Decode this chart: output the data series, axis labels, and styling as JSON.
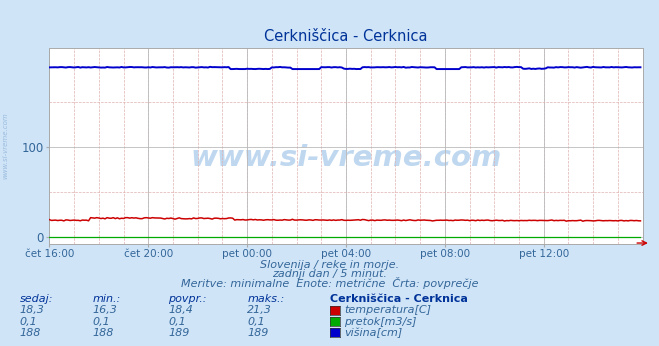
{
  "title": "Cerkniščica - Cerknica",
  "bg_color": "#d0e4f7",
  "plot_bg_color": "#ffffff",
  "x_labels": [
    "čet 16:00",
    "čet 20:00",
    "pet 00:00",
    "pet 04:00",
    "pet 08:00",
    "pet 12:00"
  ],
  "x_ticks_norm": [
    0,
    48,
    96,
    144,
    192,
    240
  ],
  "x_max": 288,
  "y_ticks": [
    0,
    100
  ],
  "y_max": 210,
  "y_min": -8,
  "temp_color": "#cc0000",
  "pretok_color": "#00aa00",
  "visina_color": "#0000cc",
  "subtitle": "Slovenija / reke in morje.\n         zadnji dan / 5 minut.\nMeritve: minimalne  Enote: metrične  Črta: povprečje",
  "table_header_cols": [
    "sedaj:",
    "min.:",
    "povpr.:",
    "maks.:",
    "Cerkniščica - Cerknica"
  ],
  "table_rows": [
    [
      "18,3",
      "16,3",
      "18,4",
      "21,3",
      "temperatura[C]"
    ],
    [
      "0,1",
      "0,1",
      "0,1",
      "0,1",
      "pretok[m3/s]"
    ],
    [
      "188",
      "188",
      "189",
      "189",
      "višina[cm]"
    ]
  ],
  "row_colors": [
    "#cc0000",
    "#00aa00",
    "#0000cc"
  ],
  "watermark": "www.si-vreme.com",
  "side_text": "www.si-vreme.com",
  "n_points": 288,
  "temp_base": 18.4,
  "temp_min": 16.3,
  "temp_max": 21.3,
  "pretok_base": 0.1,
  "visina_base": 189.0,
  "visina_min": 187.0,
  "visina_max": 190.0
}
